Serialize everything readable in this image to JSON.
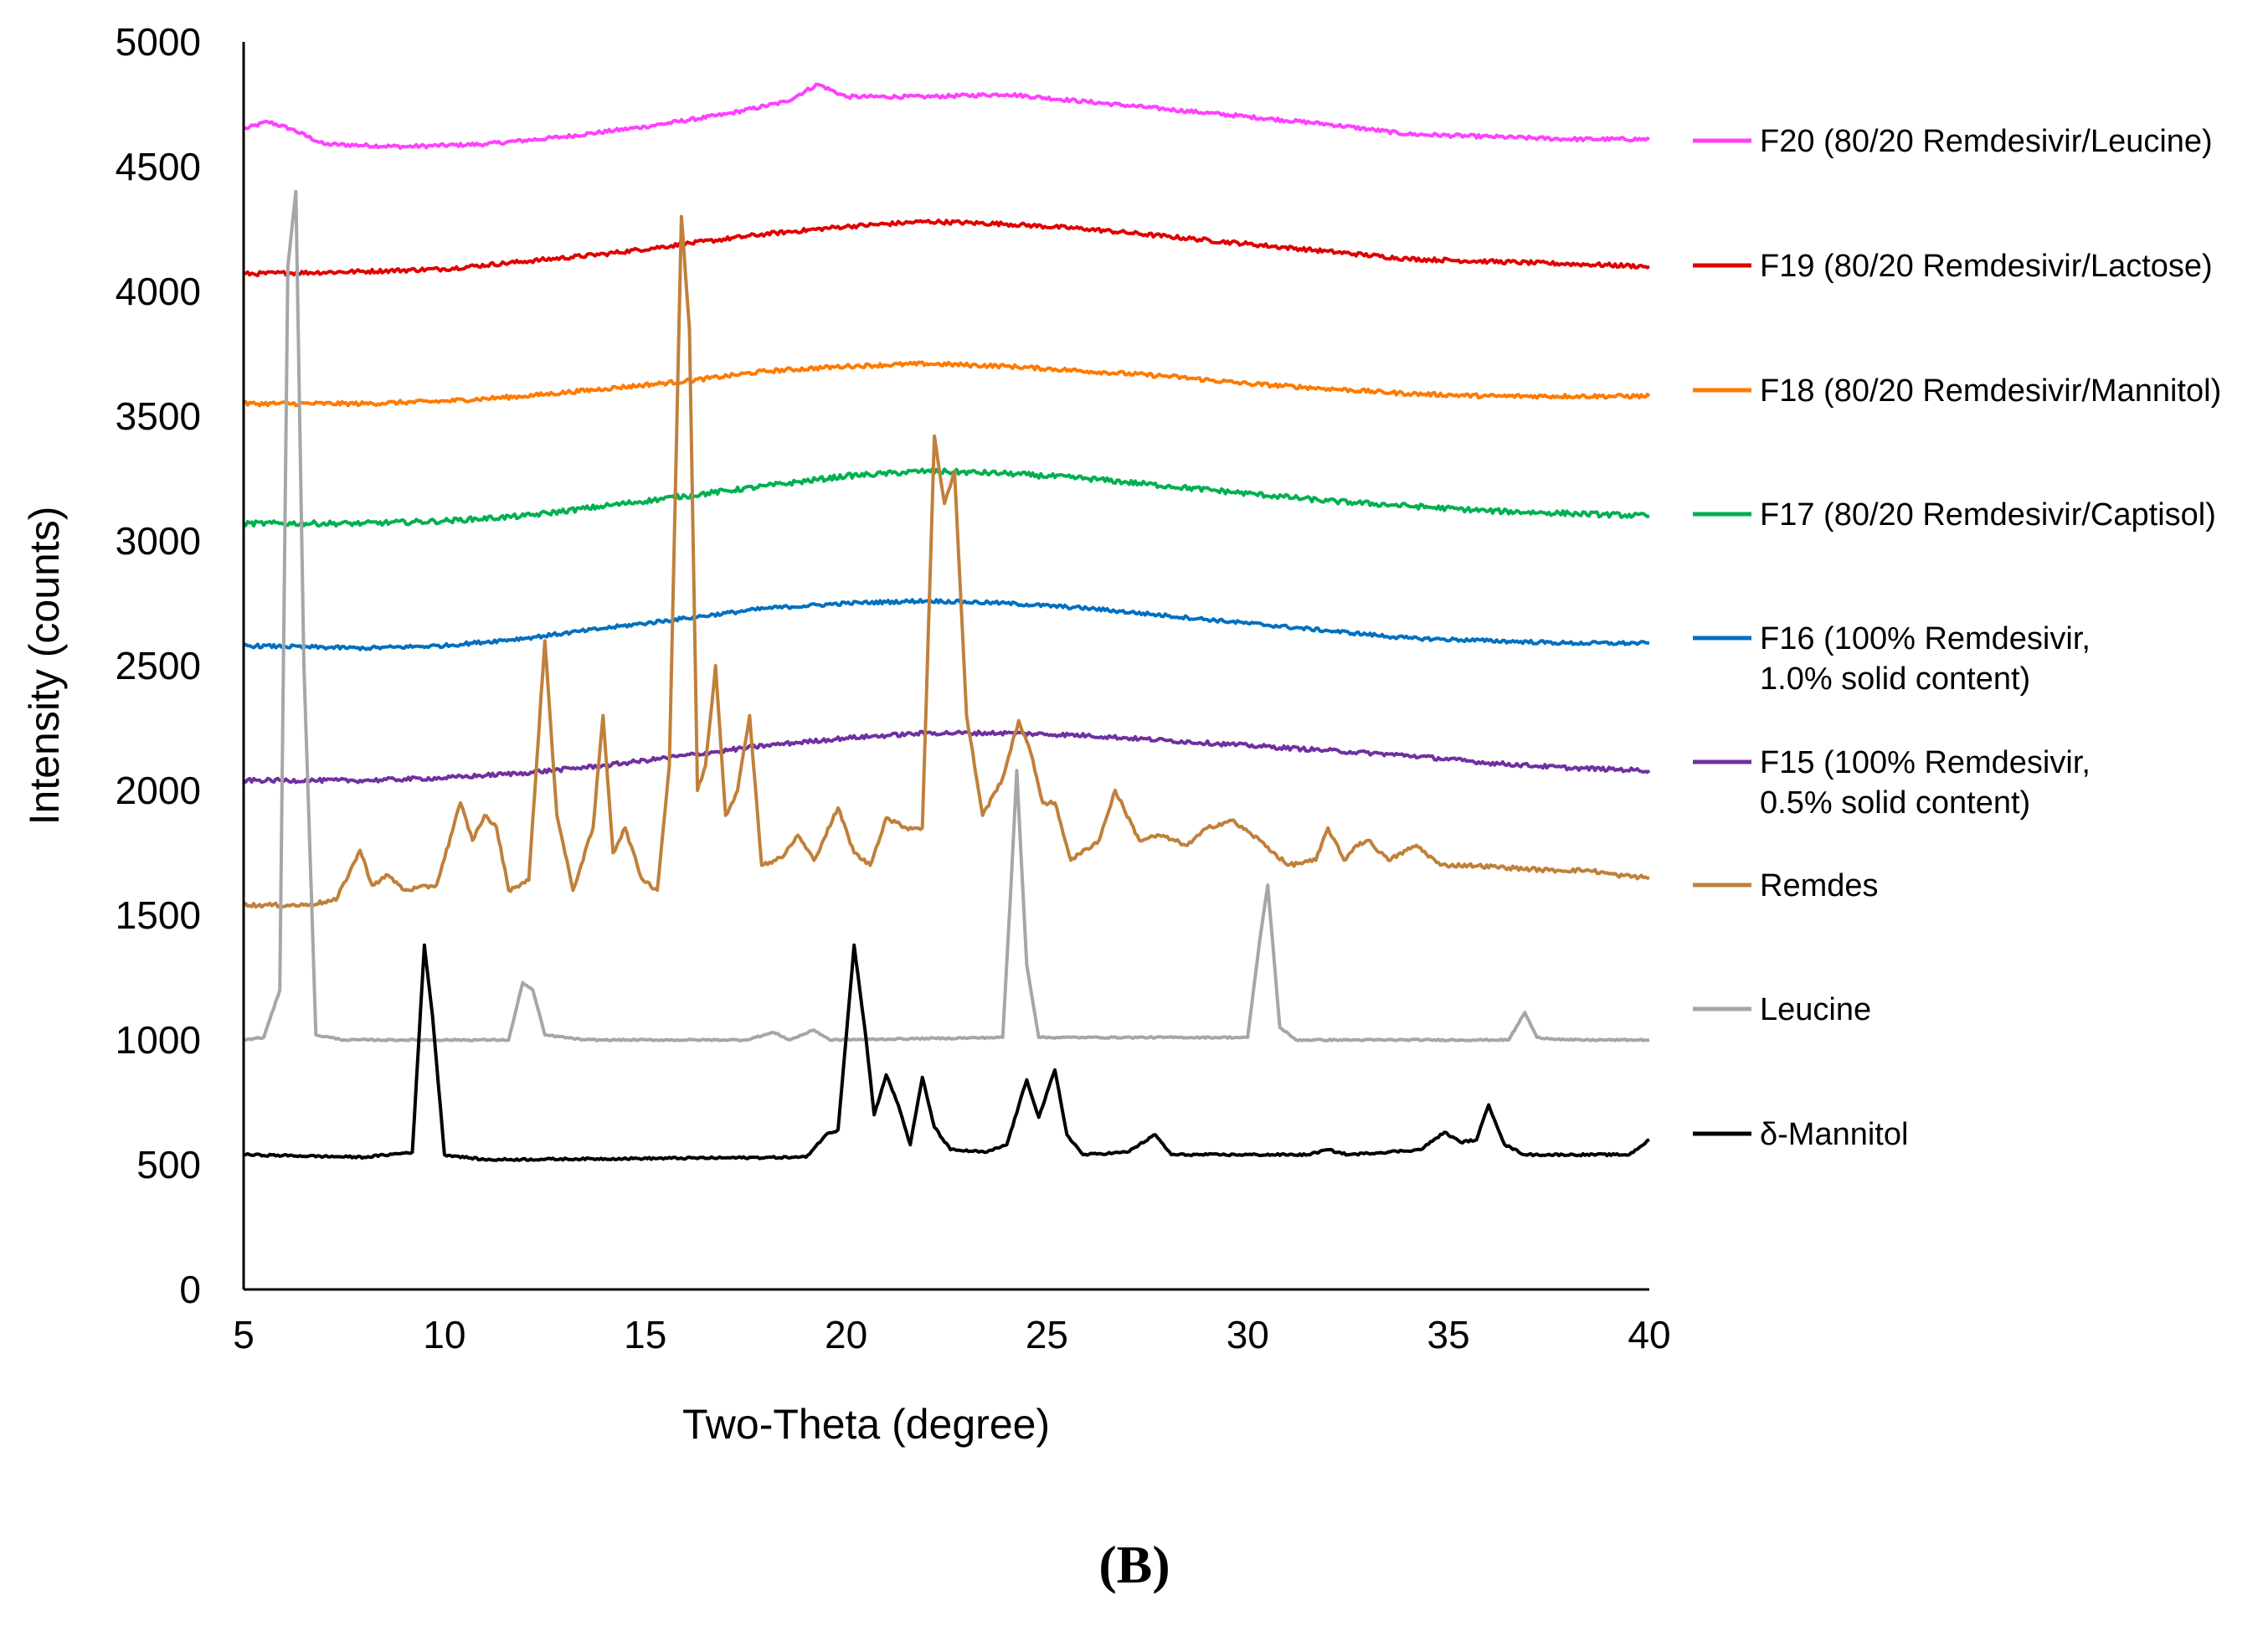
{
  "chart_data": {
    "type": "line",
    "title": "",
    "xlabel": "Two-Theta (degree)",
    "ylabel": "Intensity (counts)",
    "xlim": [
      5,
      40
    ],
    "ylim": [
      0,
      5000
    ],
    "xticks": [
      5,
      10,
      15,
      20,
      25,
      30,
      35,
      40
    ],
    "yticks": [
      0,
      500,
      1000,
      1500,
      2000,
      2500,
      3000,
      3500,
      4000,
      4500,
      5000
    ],
    "grid": false,
    "legend_position": "right",
    "panel_label": "(B)",
    "series": [
      {
        "name": "F20 (80/20 Remdesivir/Leucine)",
        "color": "#ff40ff",
        "noise": 7,
        "points": [
          [
            5,
            4650
          ],
          [
            5.6,
            4680
          ],
          [
            6.2,
            4650
          ],
          [
            7,
            4590
          ],
          [
            9,
            4580
          ],
          [
            11,
            4590
          ],
          [
            13,
            4620
          ],
          [
            15,
            4660
          ],
          [
            17,
            4710
          ],
          [
            18.5,
            4760
          ],
          [
            19.3,
            4830
          ],
          [
            20,
            4780
          ],
          [
            22,
            4780
          ],
          [
            24,
            4790
          ],
          [
            26,
            4760
          ],
          [
            28,
            4730
          ],
          [
            30,
            4700
          ],
          [
            32,
            4670
          ],
          [
            34,
            4630
          ],
          [
            36,
            4620
          ],
          [
            38,
            4610
          ],
          [
            40,
            4610
          ]
        ]
      },
      {
        "name": "F19 (80/20 Remdesivir/Lactose)",
        "color": "#e00000",
        "noise": 8,
        "points": [
          [
            5,
            4070
          ],
          [
            8,
            4080
          ],
          [
            10,
            4090
          ],
          [
            12,
            4120
          ],
          [
            14,
            4150
          ],
          [
            16,
            4190
          ],
          [
            18,
            4230
          ],
          [
            20,
            4260
          ],
          [
            22,
            4280
          ],
          [
            24,
            4270
          ],
          [
            26,
            4250
          ],
          [
            28,
            4220
          ],
          [
            30,
            4190
          ],
          [
            32,
            4160
          ],
          [
            34,
            4130
          ],
          [
            36,
            4120
          ],
          [
            38,
            4110
          ],
          [
            40,
            4100
          ]
        ]
      },
      {
        "name": "F18 (80/20 Remdesivir/Mannitol)",
        "color": "#ff7a00",
        "noise": 8,
        "points": [
          [
            5,
            3550
          ],
          [
            8,
            3550
          ],
          [
            10,
            3560
          ],
          [
            12,
            3580
          ],
          [
            14,
            3610
          ],
          [
            16,
            3640
          ],
          [
            18,
            3680
          ],
          [
            20,
            3700
          ],
          [
            22,
            3710
          ],
          [
            24,
            3700
          ],
          [
            26,
            3680
          ],
          [
            28,
            3660
          ],
          [
            30,
            3630
          ],
          [
            32,
            3610
          ],
          [
            34,
            3590
          ],
          [
            36,
            3580
          ],
          [
            38,
            3580
          ],
          [
            40,
            3580
          ]
        ]
      },
      {
        "name": "F17 (80/20 Remdesivir/Captisol)",
        "color": "#00b050",
        "noise": 10,
        "points": [
          [
            5,
            3070
          ],
          [
            8,
            3070
          ],
          [
            10,
            3080
          ],
          [
            12,
            3100
          ],
          [
            14,
            3140
          ],
          [
            16,
            3180
          ],
          [
            18,
            3220
          ],
          [
            20,
            3260
          ],
          [
            22,
            3280
          ],
          [
            24,
            3270
          ],
          [
            26,
            3250
          ],
          [
            28,
            3220
          ],
          [
            30,
            3190
          ],
          [
            32,
            3160
          ],
          [
            34,
            3140
          ],
          [
            36,
            3120
          ],
          [
            38,
            3110
          ],
          [
            40,
            3100
          ]
        ]
      },
      {
        "name": "F16 (100% Remdesivir, 1.0% solid content)",
        "color": "#0070c0",
        "noise": 7,
        "points": [
          [
            5,
            2580
          ],
          [
            8,
            2570
          ],
          [
            10,
            2580
          ],
          [
            12,
            2610
          ],
          [
            14,
            2650
          ],
          [
            16,
            2690
          ],
          [
            18,
            2730
          ],
          [
            20,
            2750
          ],
          [
            22,
            2760
          ],
          [
            24,
            2750
          ],
          [
            26,
            2730
          ],
          [
            28,
            2700
          ],
          [
            30,
            2670
          ],
          [
            32,
            2640
          ],
          [
            34,
            2610
          ],
          [
            36,
            2600
          ],
          [
            38,
            2590
          ],
          [
            40,
            2590
          ]
        ]
      },
      {
        "name": "F15 (100% Remdesivir, 0.5% solid content)",
        "color": "#7030a0",
        "noise": 8,
        "points": [
          [
            5,
            2040
          ],
          [
            8,
            2040
          ],
          [
            10,
            2050
          ],
          [
            12,
            2070
          ],
          [
            14,
            2100
          ],
          [
            16,
            2140
          ],
          [
            18,
            2180
          ],
          [
            20,
            2210
          ],
          [
            22,
            2230
          ],
          [
            24,
            2230
          ],
          [
            26,
            2220
          ],
          [
            28,
            2200
          ],
          [
            30,
            2180
          ],
          [
            32,
            2160
          ],
          [
            34,
            2140
          ],
          [
            36,
            2110
          ],
          [
            38,
            2090
          ],
          [
            40,
            2080
          ]
        ]
      },
      {
        "name": "Remdes",
        "color": "#c0803a",
        "noise": 8,
        "points": [
          [
            5,
            1540
          ],
          [
            6.5,
            1540
          ],
          [
            7.3,
            1560
          ],
          [
            7.9,
            1760
          ],
          [
            8.2,
            1620
          ],
          [
            8.6,
            1660
          ],
          [
            9.0,
            1600
          ],
          [
            9.8,
            1620
          ],
          [
            10.4,
            1950
          ],
          [
            10.7,
            1800
          ],
          [
            11.0,
            1900
          ],
          [
            11.3,
            1850
          ],
          [
            11.6,
            1600
          ],
          [
            12.1,
            1640
          ],
          [
            12.5,
            2600
          ],
          [
            12.8,
            1900
          ],
          [
            13.2,
            1600
          ],
          [
            13.7,
            1850
          ],
          [
            13.95,
            2300
          ],
          [
            14.2,
            1750
          ],
          [
            14.5,
            1850
          ],
          [
            14.9,
            1650
          ],
          [
            15.3,
            1600
          ],
          [
            15.6,
            2100
          ],
          [
            15.9,
            4300
          ],
          [
            16.1,
            3850
          ],
          [
            16.3,
            2000
          ],
          [
            16.5,
            2100
          ],
          [
            16.75,
            2500
          ],
          [
            17.0,
            1900
          ],
          [
            17.3,
            2000
          ],
          [
            17.6,
            2300
          ],
          [
            17.9,
            1700
          ],
          [
            18.4,
            1730
          ],
          [
            18.8,
            1820
          ],
          [
            19.2,
            1720
          ],
          [
            19.8,
            1930
          ],
          [
            20.2,
            1750
          ],
          [
            20.6,
            1700
          ],
          [
            21.0,
            1890
          ],
          [
            21.5,
            1850
          ],
          [
            21.9,
            1850
          ],
          [
            22.2,
            3420
          ],
          [
            22.45,
            3150
          ],
          [
            22.7,
            3280
          ],
          [
            23.0,
            2300
          ],
          [
            23.4,
            1900
          ],
          [
            23.9,
            2050
          ],
          [
            24.3,
            2280
          ],
          [
            24.6,
            2150
          ],
          [
            24.9,
            1950
          ],
          [
            25.2,
            1950
          ],
          [
            25.6,
            1720
          ],
          [
            26.3,
            1800
          ],
          [
            26.7,
            2000
          ],
          [
            27.3,
            1800
          ],
          [
            27.8,
            1820
          ],
          [
            28.5,
            1780
          ],
          [
            29.0,
            1850
          ],
          [
            29.6,
            1880
          ],
          [
            30.3,
            1800
          ],
          [
            31.0,
            1700
          ],
          [
            31.7,
            1720
          ],
          [
            32.0,
            1850
          ],
          [
            32.4,
            1720
          ],
          [
            32.7,
            1780
          ],
          [
            33.0,
            1800
          ],
          [
            33.5,
            1720
          ],
          [
            34.2,
            1780
          ],
          [
            34.8,
            1700
          ],
          [
            35.5,
            1700
          ],
          [
            36.5,
            1690
          ],
          [
            37.5,
            1680
          ],
          [
            38.5,
            1680
          ],
          [
            39.2,
            1660
          ],
          [
            40,
            1650
          ]
        ]
      },
      {
        "name": "Leucine",
        "color": "#a6a6a6",
        "noise": 3,
        "points": [
          [
            5,
            1000
          ],
          [
            5.5,
            1010
          ],
          [
            5.9,
            1200
          ],
          [
            6.1,
            4100
          ],
          [
            6.3,
            4400
          ],
          [
            6.5,
            2500
          ],
          [
            6.8,
            1020
          ],
          [
            7.5,
            1000
          ],
          [
            11.6,
            1000
          ],
          [
            11.95,
            1230
          ],
          [
            12.2,
            1200
          ],
          [
            12.5,
            1020
          ],
          [
            13.5,
            1000
          ],
          [
            17.5,
            1000
          ],
          [
            18.2,
            1030
          ],
          [
            18.6,
            1000
          ],
          [
            19.2,
            1040
          ],
          [
            19.6,
            1000
          ],
          [
            23.9,
            1010
          ],
          [
            24.1,
            1600
          ],
          [
            24.25,
            2080
          ],
          [
            24.5,
            1300
          ],
          [
            24.8,
            1010
          ],
          [
            26,
            1010
          ],
          [
            30.0,
            1010
          ],
          [
            30.3,
            1400
          ],
          [
            30.5,
            1620
          ],
          [
            30.8,
            1050
          ],
          [
            31.2,
            1000
          ],
          [
            36.5,
            1000
          ],
          [
            36.9,
            1110
          ],
          [
            37.2,
            1010
          ],
          [
            38,
            1000
          ],
          [
            40,
            1000
          ]
        ]
      },
      {
        "name": "δ-Mannitol",
        "color": "#000000",
        "noise": 4,
        "points": [
          [
            5,
            540
          ],
          [
            8,
            530
          ],
          [
            9.2,
            550
          ],
          [
            9.5,
            1380
          ],
          [
            9.7,
            1100
          ],
          [
            10.0,
            540
          ],
          [
            11,
            520
          ],
          [
            19,
            530
          ],
          [
            19.5,
            620
          ],
          [
            19.8,
            640
          ],
          [
            20.2,
            1380
          ],
          [
            20.5,
            1000
          ],
          [
            20.7,
            700
          ],
          [
            21.0,
            860
          ],
          [
            21.3,
            740
          ],
          [
            21.6,
            580
          ],
          [
            21.9,
            850
          ],
          [
            22.2,
            650
          ],
          [
            22.6,
            560
          ],
          [
            23.5,
            550
          ],
          [
            24.0,
            580
          ],
          [
            24.5,
            840
          ],
          [
            24.8,
            690
          ],
          [
            25.2,
            880
          ],
          [
            25.5,
            620
          ],
          [
            25.9,
            540
          ],
          [
            27.0,
            550
          ],
          [
            27.7,
            620
          ],
          [
            28.1,
            540
          ],
          [
            29,
            540
          ],
          [
            31.5,
            540
          ],
          [
            32.0,
            560
          ],
          [
            32.5,
            540
          ],
          [
            34.3,
            560
          ],
          [
            34.9,
            630
          ],
          [
            35.3,
            590
          ],
          [
            35.7,
            600
          ],
          [
            36.0,
            740
          ],
          [
            36.4,
            580
          ],
          [
            36.9,
            540
          ],
          [
            39.5,
            540
          ],
          [
            40,
            600
          ]
        ]
      }
    ]
  }
}
